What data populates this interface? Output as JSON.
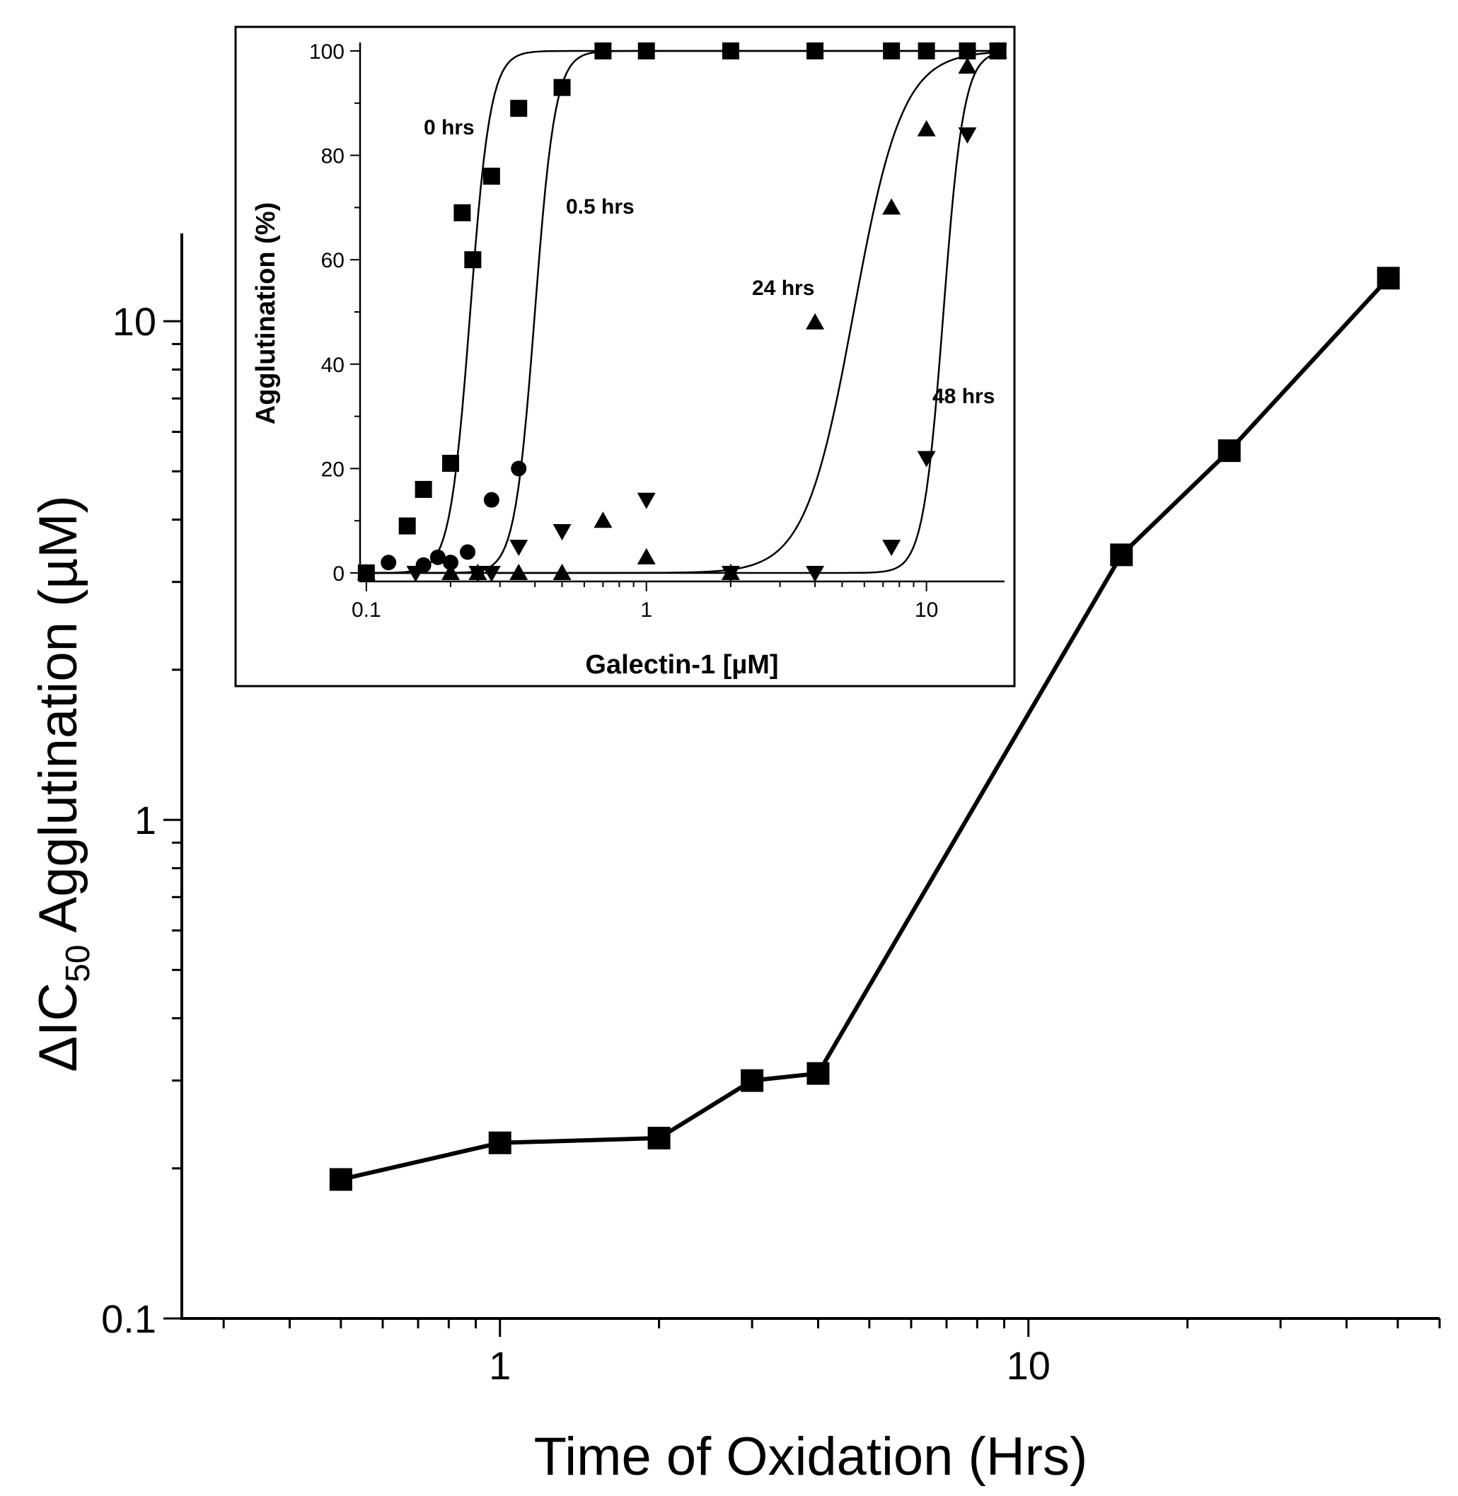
{
  "chart_data": [
    {
      "id": "main",
      "type": "line",
      "title": "",
      "xlabel": "Time of Oxidation (Hrs)",
      "ylabel_parts": {
        "prefix": "ΔIC",
        "subscript": "50",
        "suffix": " Agglutination (µM)"
      },
      "xscale": "log",
      "yscale": "log",
      "xlim": [
        0.25,
        60
      ],
      "ylim": [
        0.1,
        15
      ],
      "xticks": [
        1,
        10
      ],
      "xtick_labels": [
        "1",
        "10"
      ],
      "yticks": [
        0.1,
        1,
        10
      ],
      "ytick_labels": [
        "0.1",
        "1",
        "10"
      ],
      "marker": "square",
      "series": [
        {
          "name": "ΔIC50",
          "x": [
            0.5,
            1,
            2,
            3,
            4,
            15,
            24,
            48
          ],
          "y": [
            0.19,
            0.225,
            0.23,
            0.3,
            0.31,
            3.4,
            5.5,
            12.2
          ]
        }
      ]
    },
    {
      "id": "inset",
      "type": "scatter",
      "title": "",
      "xlabel": "Galectin-1 [µM]",
      "ylabel": "Agglutination (%)",
      "xscale": "log",
      "xlim": [
        0.095,
        19
      ],
      "ylim": [
        0,
        100
      ],
      "xticks": [
        0.1,
        1,
        10
      ],
      "xtick_labels": [
        "0.1",
        "1",
        "10"
      ],
      "yticks": [
        0,
        20,
        40,
        60,
        80,
        100
      ],
      "ytick_labels": [
        "0",
        "20",
        "40",
        "60",
        "80",
        "100"
      ],
      "series": [
        {
          "name": "0 hrs",
          "marker": "square",
          "label": "0 hrs",
          "x": [
            0.1,
            0.14,
            0.16,
            0.2,
            0.22,
            0.24,
            0.28,
            0.35,
            0.5,
            0.7,
            1,
            2,
            4,
            7.5,
            10,
            14,
            18
          ],
          "y": [
            0,
            9,
            16,
            21,
            69,
            60,
            76,
            89,
            93,
            100,
            100,
            100,
            100,
            100,
            100,
            100,
            100
          ],
          "fit": {
            "ec50": 0.235,
            "hill": 12
          }
        },
        {
          "name": "0.5 hrs",
          "marker": "circle",
          "label": "0.5 hrs",
          "x": [
            0.1,
            0.12,
            0.16,
            0.18,
            0.2,
            0.23,
            0.28,
            0.35
          ],
          "y": [
            0,
            2,
            1.5,
            3,
            2,
            4,
            14,
            20
          ],
          "fit": {
            "ec50": 0.4,
            "hill": 12
          }
        },
        {
          "name": "24 hrs",
          "marker": "triangle-up",
          "label": "24 hrs",
          "x": [
            0.1,
            0.2,
            0.25,
            0.35,
            0.5,
            0.7,
            1,
            2,
            4,
            7.5,
            10,
            14,
            18
          ],
          "y": [
            0,
            0,
            0,
            0,
            0,
            10,
            3,
            0,
            48,
            70,
            85,
            97,
            100
          ],
          "fit": {
            "ec50": 5.5,
            "hill": 5
          }
        },
        {
          "name": "48 hrs",
          "marker": "triangle-down",
          "label": "48 hrs",
          "x": [
            0.15,
            0.25,
            0.28,
            0.35,
            0.5,
            1,
            2,
            4,
            7.5,
            10,
            14,
            18
          ],
          "y": [
            0,
            0,
            0,
            5,
            8,
            14,
            0,
            0,
            5,
            22,
            84,
            100
          ],
          "fit": {
            "ec50": 11.5,
            "hill": 12
          }
        }
      ]
    }
  ]
}
